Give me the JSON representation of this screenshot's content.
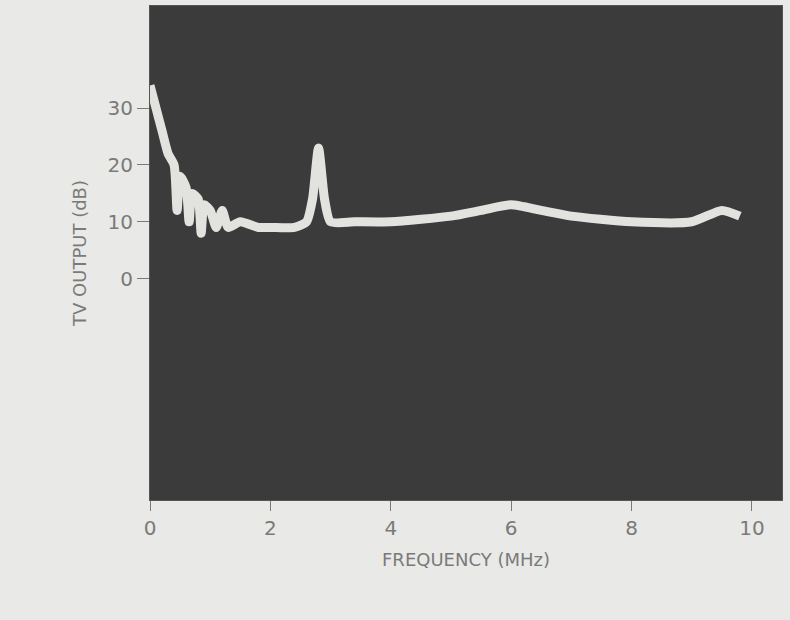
{
  "chart_data": {
    "type": "line",
    "x_label": "FREQUENCY (MHz)",
    "y_label": "TV OUTPUT (dB)",
    "x": [
      0,
      0.1,
      0.2,
      0.3,
      0.4,
      0.45,
      0.5,
      0.6,
      0.65,
      0.7,
      0.8,
      0.85,
      0.9,
      1.0,
      1.1,
      1.2,
      1.3,
      1.5,
      1.8,
      2.0,
      2.4,
      2.6,
      2.7,
      2.8,
      2.9,
      3.0,
      3.4,
      4,
      5,
      5.5,
      6,
      6.5,
      7,
      8,
      9,
      9.5,
      9.8
    ],
    "values": [
      34,
      30,
      26,
      22,
      20,
      12,
      18,
      16,
      10,
      15,
      14,
      8,
      13,
      12,
      9,
      12,
      9,
      10,
      9,
      9,
      9,
      10,
      14,
      23,
      14,
      10,
      10,
      10,
      11,
      12,
      13,
      12,
      11,
      10,
      10,
      12,
      11
    ],
    "color": "#f5f5f2",
    "xlim": [
      0,
      10.5
    ],
    "ylim": [
      -39,
      48
    ],
    "xticks": [
      0,
      2,
      4,
      6,
      8,
      10
    ],
    "yticks": [
      0,
      10,
      20,
      30
    ],
    "grid": false
  }
}
